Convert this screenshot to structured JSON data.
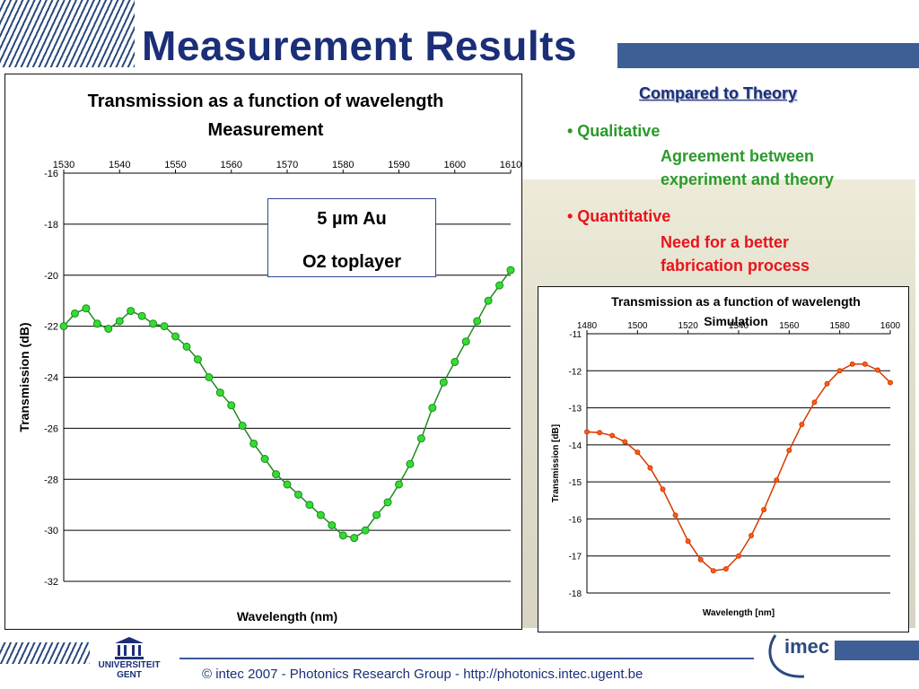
{
  "title": "Measurement Results",
  "comparison": {
    "heading": "Compared to Theory",
    "qualitative": {
      "label": "• Qualitative",
      "line1": "Agreement between",
      "line2": "experiment and theory"
    },
    "quantitative": {
      "label": "• Quantitative",
      "line1": "Need for a better",
      "line2": "fabrication process"
    }
  },
  "annotation": {
    "line1": "5 µm Au",
    "line2": "O2 toplayer"
  },
  "footer": "© intec 2007  -  Photonics Research Group  -   http://photonics.intec.ugent.be",
  "logos": {
    "left": "UNIVERSITEIT GENT",
    "right": "imec"
  },
  "colors": {
    "title": "#1b2f78",
    "green": "#2a9a2a",
    "red": "#e8141c",
    "measure_marker": "#33dd33",
    "sim_marker": "#ff5a1a"
  },
  "chart_data": [
    {
      "type": "scatter",
      "title": "Transmission as a function of wavelength",
      "subtitle": "Measurement",
      "xlabel": "Wavelength (nm)",
      "ylabel": "Transmission (dB)",
      "xlim": [
        1530,
        1610
      ],
      "ylim": [
        -32,
        -16
      ],
      "x_ticks": [
        1530,
        1540,
        1550,
        1560,
        1570,
        1580,
        1590,
        1600,
        1610
      ],
      "y_ticks": [
        -16,
        -18,
        -20,
        -22,
        -24,
        -26,
        -28,
        -30,
        -32
      ],
      "grid": "horizontal",
      "x": [
        1530,
        1532,
        1534,
        1536,
        1538,
        1540,
        1542,
        1544,
        1546,
        1548,
        1550,
        1552,
        1554,
        1556,
        1558,
        1560,
        1562,
        1564,
        1566,
        1568,
        1570,
        1572,
        1574,
        1576,
        1578,
        1580,
        1582,
        1584,
        1586,
        1588,
        1590,
        1592,
        1594,
        1596,
        1598,
        1600,
        1602,
        1604,
        1606,
        1608,
        1610
      ],
      "y": [
        -22.0,
        -21.5,
        -21.3,
        -21.9,
        -22.1,
        -21.8,
        -21.4,
        -21.6,
        -21.9,
        -22.0,
        -22.4,
        -22.8,
        -23.3,
        -24.0,
        -24.6,
        -25.1,
        -25.9,
        -26.6,
        -27.2,
        -27.8,
        -28.2,
        -28.6,
        -29.0,
        -29.4,
        -29.8,
        -30.2,
        -30.3,
        -30.0,
        -29.4,
        -28.9,
        -28.2,
        -27.4,
        -26.4,
        -25.2,
        -24.2,
        -23.4,
        -22.6,
        -21.8,
        -21.0,
        -20.4,
        -19.8
      ]
    },
    {
      "type": "line",
      "title": "Transmission as a function of wavelength",
      "subtitle": "Simulation",
      "xlabel": "Wavelength [nm]",
      "ylabel": "Transmission [dB]",
      "xlim": [
        1480,
        1600
      ],
      "ylim": [
        -18,
        -11
      ],
      "x_ticks": [
        1480,
        1500,
        1520,
        1540,
        1560,
        1580,
        1600
      ],
      "y_ticks": [
        -11,
        -12,
        -13,
        -14,
        -15,
        -16,
        -17,
        -18
      ],
      "grid": "horizontal",
      "x": [
        1480,
        1485,
        1490,
        1495,
        1500,
        1505,
        1510,
        1515,
        1520,
        1525,
        1530,
        1535,
        1540,
        1545,
        1550,
        1555,
        1560,
        1565,
        1570,
        1575,
        1580,
        1585,
        1590,
        1595,
        1600
      ],
      "y": [
        -13.65,
        -13.67,
        -13.75,
        -13.92,
        -14.2,
        -14.62,
        -15.2,
        -15.9,
        -16.6,
        -17.1,
        -17.4,
        -17.35,
        -17.0,
        -16.45,
        -15.75,
        -14.95,
        -14.15,
        -13.45,
        -12.85,
        -12.35,
        -12.0,
        -11.82,
        -11.82,
        -11.98,
        -12.32
      ]
    }
  ]
}
